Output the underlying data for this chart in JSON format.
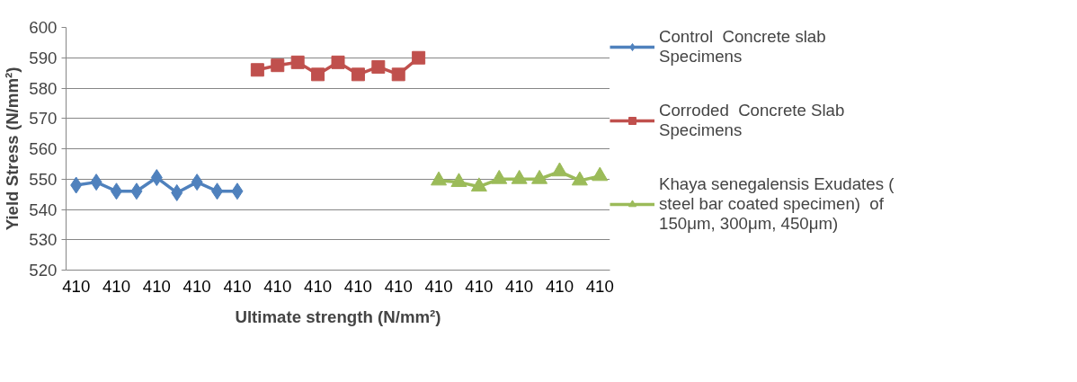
{
  "chart_data": {
    "type": "line",
    "xlabel": "Ultimate strength (N/mm²)",
    "ylabel": "Yield Stress (N/mm²)",
    "categories": [
      "410",
      null,
      "410",
      null,
      "410",
      null,
      "410",
      null,
      "410",
      null,
      "410",
      null,
      "410",
      null,
      "410",
      null,
      "410",
      null,
      "410",
      null,
      "410",
      null,
      "410",
      null,
      "410",
      null,
      "410"
    ],
    "series": [
      {
        "name": "Control  Concrete slab Specimens",
        "color": "#4f81bd",
        "marker": "diamond",
        "values": [
          548,
          549,
          546,
          546,
          550.5,
          545.5,
          549,
          546,
          546,
          null,
          null,
          null,
          null,
          null,
          null,
          null,
          null,
          null,
          null,
          null,
          null,
          null,
          null,
          null,
          null,
          null,
          null
        ]
      },
      {
        "name": "Corroded  Concrete Slab Specimens",
        "color": "#c0504d",
        "marker": "square",
        "values": [
          null,
          null,
          null,
          null,
          null,
          null,
          null,
          null,
          null,
          586,
          587.5,
          588.5,
          584.5,
          588.5,
          584.5,
          587,
          584.5,
          590,
          null,
          null,
          null,
          null,
          null,
          null,
          null,
          null,
          null
        ]
      },
      {
        "name": "Khaya senegalensis Exudates ( steel bar coated specimen)  of 150μm, 300μm, 450μm)",
        "color": "#9bbb59",
        "marker": "triangle",
        "values": [
          null,
          null,
          null,
          null,
          null,
          null,
          null,
          null,
          null,
          null,
          null,
          null,
          null,
          null,
          null,
          null,
          null,
          null,
          549.5,
          549,
          547.5,
          550,
          550,
          550,
          552.5,
          549.5,
          551
        ]
      }
    ],
    "ylim": [
      520,
      600
    ],
    "yticks": [
      520,
      530,
      540,
      550,
      560,
      570,
      580,
      590,
      600
    ],
    "grid": "y",
    "legend": "right"
  }
}
